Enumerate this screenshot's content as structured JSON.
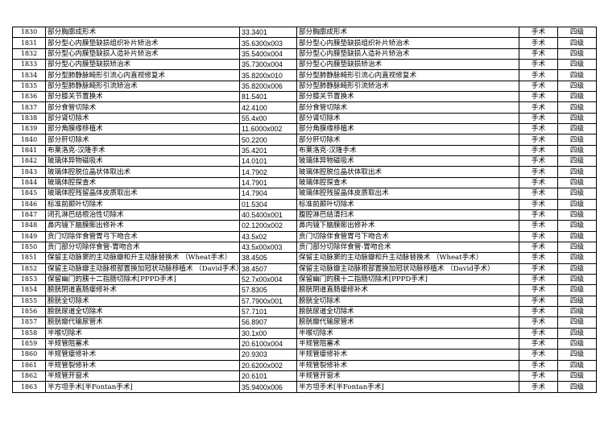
{
  "rows": [
    {
      "no": "1830",
      "name": "部分胸廓成形术",
      "code": "33.3401",
      "name2": "部分胸廓成形术",
      "type": "手术",
      "level": "四级"
    },
    {
      "no": "1831",
      "name": "部分型心内膜垫缺损组织补片矫治术",
      "code": "35.6300x003",
      "name2": "部分型心内膜垫缺损组织补片矫治术",
      "type": "手术",
      "level": "四级"
    },
    {
      "no": "1832",
      "name": "部分型心内膜垫缺损人造补片矫治术",
      "code": "35.5400x004",
      "name2": "部分型心内膜垫缺损人造补片矫治术",
      "type": "手术",
      "level": "四级"
    },
    {
      "no": "1833",
      "name": "部分型心内膜垫缺损矫治术",
      "code": "35.7300x004",
      "name2": "部分型心内膜垫缺损矫治术",
      "type": "手术",
      "level": "四级"
    },
    {
      "no": "1834",
      "name": "部分型肺静脉畸形引流心内直视修复术",
      "code": "35.8200x010",
      "name2": "部分型肺静脉畸形引流心内直视修复术",
      "type": "手术",
      "level": "四级"
    },
    {
      "no": "1835",
      "name": "部分型肺静脉畸形引流矫治术",
      "code": "35.8200x006",
      "name2": "部分型肺静脉畸形引流矫治术",
      "type": "手术",
      "level": "四级"
    },
    {
      "no": "1836",
      "name": "部分膝关节置换术",
      "code": "81.5401",
      "name2": "部分膝关节置换术",
      "type": "手术",
      "level": "四级"
    },
    {
      "no": "1837",
      "name": "部分食管切除术",
      "code": "42.4100",
      "name2": "部分食管切除术",
      "type": "手术",
      "level": "四级"
    },
    {
      "no": "1838",
      "name": "部分肾切除术",
      "code": "55.4x00",
      "name2": "部分肾切除术",
      "type": "手术",
      "level": "四级"
    },
    {
      "no": "1839",
      "name": "部分角膜缘移植术",
      "code": "11.6000x002",
      "name2": "部分角膜缘移植术",
      "type": "手术",
      "level": "四级"
    },
    {
      "no": "1840",
      "name": "部分肝切除术",
      "code": "50.2200",
      "name2": "部分肝切除术",
      "type": "手术",
      "level": "四级"
    },
    {
      "no": "1841",
      "name": "布莱洛克-汉隆手术",
      "code": "35.4201",
      "name2": "布莱洛克-汉隆手术",
      "type": "手术",
      "level": "四级"
    },
    {
      "no": "1842",
      "name": "玻璃体异物磁吸术",
      "code": "14.0101",
      "name2": "玻璃体异物磁吸术",
      "type": "手术",
      "level": "四级"
    },
    {
      "no": "1843",
      "name": "玻璃体腔脱位晶状体取出术",
      "code": "14.7902",
      "name2": "玻璃体腔脱位晶状体取出术",
      "type": "手术",
      "level": "四级"
    },
    {
      "no": "1844",
      "name": "玻璃体腔探查术",
      "code": "14.7901",
      "name2": "玻璃体腔探查术",
      "type": "手术",
      "level": "四级"
    },
    {
      "no": "1845",
      "name": "玻璃体腔残留晶体皮质取出术",
      "code": "14.7904",
      "name2": "玻璃体腔残留晶体皮质取出术",
      "type": "手术",
      "level": "四级"
    },
    {
      "no": "1846",
      "name": "标准前颞叶切除术",
      "code": "01.5304",
      "name2": "标准前颞叶切除术",
      "type": "手术",
      "level": "四级"
    },
    {
      "no": "1847",
      "name": "闭孔淋巴结根治性切除术",
      "code": "40.5400x001",
      "name2": "腹腔淋巴结清扫术",
      "type": "手术",
      "level": "四级"
    },
    {
      "no": "1848",
      "name": "鼻内镜下脑膜膨出修补术",
      "code": "02.1200x002",
      "name2": "鼻内镜下脑膜膨出修补术",
      "type": "手术",
      "level": "四级"
    },
    {
      "no": "1849",
      "name": "贲门切除伴食管胃弓下吻合术",
      "code": "43.5x02",
      "name2": "贲门切除伴食管胃弓下吻合术",
      "type": "手术",
      "level": "四级"
    },
    {
      "no": "1850",
      "name": "贲门部分切除伴食管-胃吻合术",
      "code": "43.5x00x003",
      "name2": "贲门部分切除伴食管-胃吻合术",
      "type": "手术",
      "level": "四级"
    },
    {
      "no": "1851",
      "name": "保留主动脉窦的主动脉瓣和升主动脉替换术 （Wheat手术）",
      "code": "38.4505",
      "name2": "保留主动脉窦的主动脉瓣和升主动脉替换术 （Wheat手术）",
      "type": "手术",
      "level": "四级"
    },
    {
      "no": "1852",
      "name": "保留主动脉瓣主动脉根部置换加冠状动脉移植术 （David手术）",
      "code": "38.4507",
      "name2": "保留主动脉瓣主动脉根部置换加冠状动脉移植术 （David手术）",
      "type": "手术",
      "level": "四级"
    },
    {
      "no": "1853",
      "name": "保留幽门的胰十二指肠切除术[PPPD手术]",
      "code": "52.7x00x004",
      "name2": "保留幽门的胰十二指肠切除术[PPPD手术]",
      "type": "手术",
      "level": "四级"
    },
    {
      "no": "1854",
      "name": "膀胱阴道直肠瘘修补术",
      "code": "57.8305",
      "name2": "膀胱阴道直肠瘘修补术",
      "type": "手术",
      "level": "四级"
    },
    {
      "no": "1855",
      "name": "膀胱全切除术",
      "code": "57.7900x001",
      "name2": "膀胱全切除术",
      "type": "手术",
      "level": "四级"
    },
    {
      "no": "1856",
      "name": "膀胱尿道全切除术",
      "code": "57.7101",
      "name2": "膀胱尿道全切除术",
      "type": "手术",
      "level": "四级"
    },
    {
      "no": "1857",
      "name": "膀胱瓣代输尿管术",
      "code": "56.8907",
      "name2": "膀胱瓣代输尿管术",
      "type": "手术",
      "level": "四级"
    },
    {
      "no": "1858",
      "name": "半喉切除术",
      "code": "30.1x00",
      "name2": "半喉切除术",
      "type": "手术",
      "level": "四级"
    },
    {
      "no": "1859",
      "name": "半规管阻塞术",
      "code": "20.6100x004",
      "name2": "半规管阻塞术",
      "type": "手术",
      "level": "四级"
    },
    {
      "no": "1860",
      "name": "半规管瘘修补术",
      "code": "20.9303",
      "name2": "半规管瘘修补术",
      "type": "手术",
      "level": "四级"
    },
    {
      "no": "1861",
      "name": "半规管裂修补术",
      "code": "20.6200x002",
      "name2": "半规管裂修补术",
      "type": "手术",
      "level": "四级"
    },
    {
      "no": "1862",
      "name": "半规管开窗术",
      "code": "20.6101",
      "name2": "半规管开窗术",
      "type": "手术",
      "level": "四级"
    },
    {
      "no": "1863",
      "name": "半方坦手术[半Fontan手术]",
      "code": "35.9400x006",
      "name2": "半方坦手术[半Fontan手术]",
      "type": "手术",
      "level": "四级"
    }
  ]
}
